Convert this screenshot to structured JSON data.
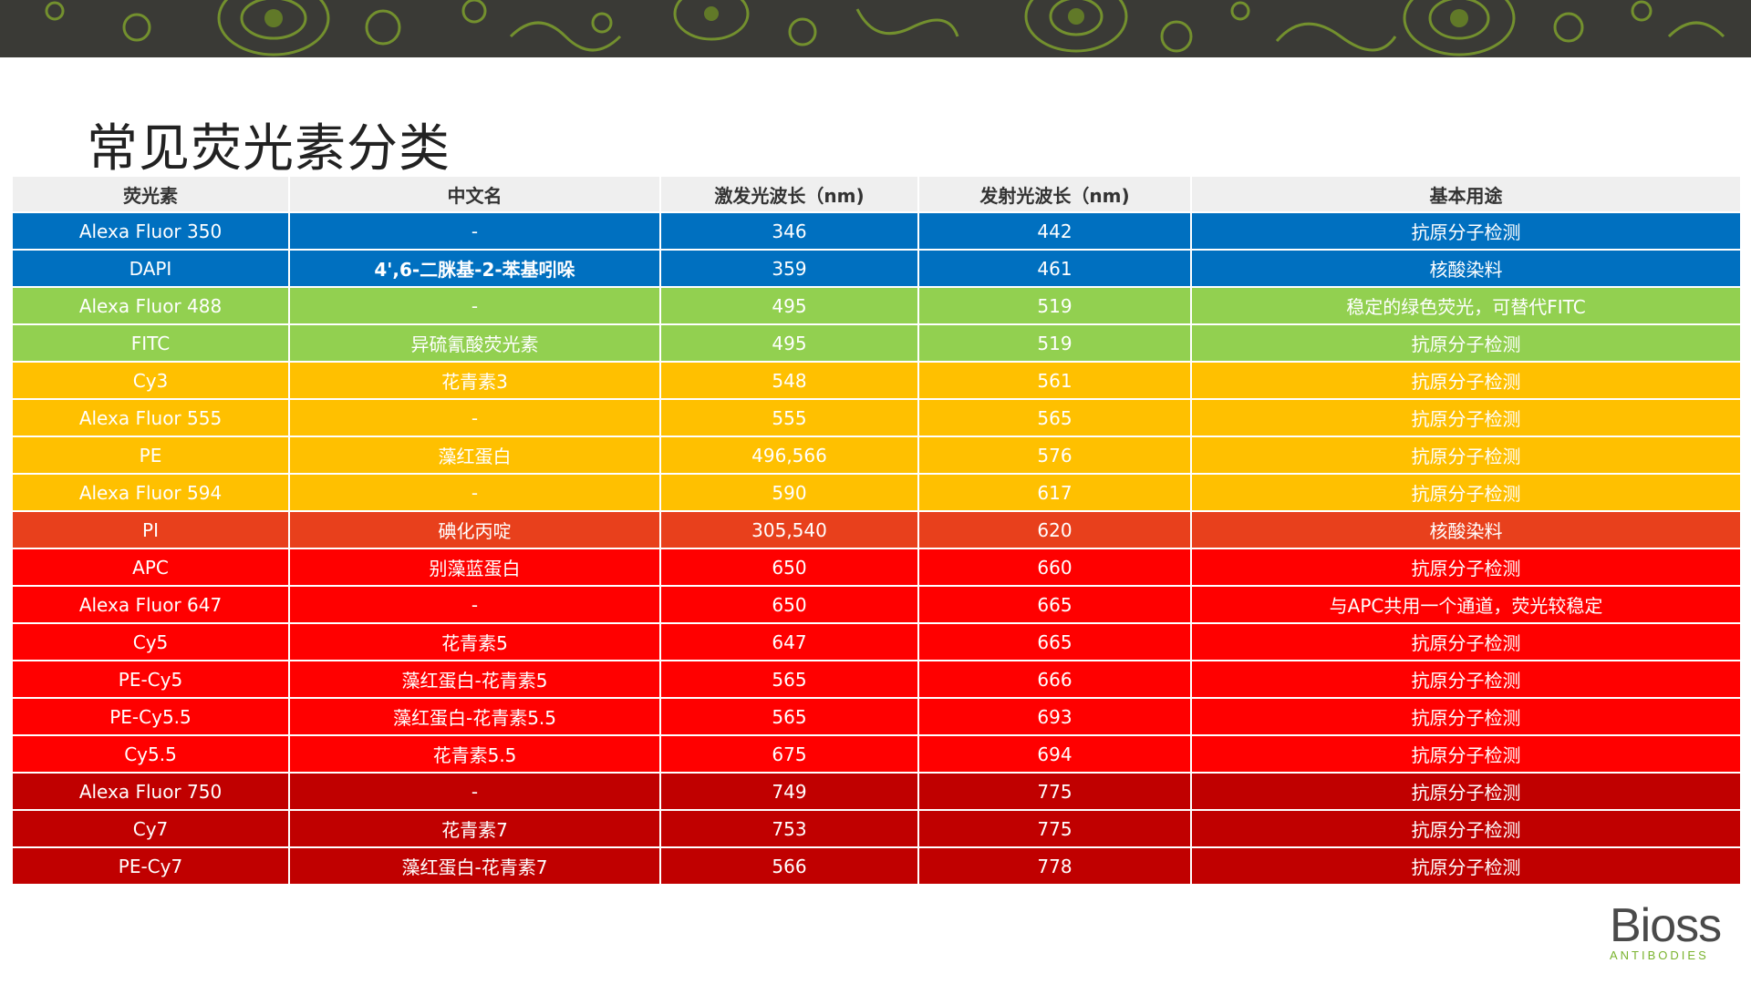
{
  "title": "常见荧光素分类",
  "colors": {
    "blue": "#0070c0",
    "green": "#92d050",
    "yellow": "#ffc000",
    "orange_red": "#e8401c",
    "red": "#ff0000",
    "dark_red": "#c00000",
    "header_bg": "#efefef",
    "banner": "#3a3a36",
    "banner_pattern": "#7a9a2e",
    "logo_green": "#7ab32e"
  },
  "table": {
    "headers": [
      "荧光素",
      "中文名",
      "激发光波长（nm)",
      "发射光波长（nm)",
      "基本用途"
    ],
    "rows": [
      {
        "color": "#0070c0",
        "cells": [
          "Alexa Fluor 350",
          "-",
          "346",
          "442",
          "抗原分子检测"
        ]
      },
      {
        "color": "#0070c0",
        "cells": [
          "DAPI",
          "4',6-二脒基-2-苯基吲哚",
          "359",
          "461",
          "核酸染料"
        ]
      },
      {
        "color": "#92d050",
        "cells": [
          "Alexa Fluor 488",
          "-",
          "495",
          "519",
          "稳定的绿色荧光，可替代FITC"
        ]
      },
      {
        "color": "#92d050",
        "cells": [
          "FITC",
          "异硫氰酸荧光素",
          "495",
          "519",
          "抗原分子检测"
        ]
      },
      {
        "color": "#ffc000",
        "cells": [
          "Cy3",
          "花青素3",
          "548",
          "561",
          "抗原分子检测"
        ]
      },
      {
        "color": "#ffc000",
        "cells": [
          "Alexa Fluor 555",
          "-",
          "555",
          "565",
          "抗原分子检测"
        ]
      },
      {
        "color": "#ffc000",
        "cells": [
          "PE",
          "藻红蛋白",
          "496,566",
          "576",
          "抗原分子检测"
        ]
      },
      {
        "color": "#ffc000",
        "cells": [
          "Alexa Fluor 594",
          "-",
          "590",
          "617",
          "抗原分子检测"
        ]
      },
      {
        "color": "#e8401c",
        "cells": [
          "PI",
          "碘化丙啶",
          "305,540",
          "620",
          "核酸染料"
        ]
      },
      {
        "color": "#ff0000",
        "cells": [
          "APC",
          "别藻蓝蛋白",
          "650",
          "660",
          "抗原分子检测"
        ]
      },
      {
        "color": "#ff0000",
        "cells": [
          "Alexa Fluor 647",
          "-",
          "650",
          "665",
          "与APC共用一个通道，荧光较稳定"
        ]
      },
      {
        "color": "#ff0000",
        "cells": [
          "Cy5",
          "花青素5",
          "647",
          "665",
          "抗原分子检测"
        ]
      },
      {
        "color": "#ff0000",
        "cells": [
          "PE-Cy5",
          "藻红蛋白-花青素5",
          "565",
          "666",
          "抗原分子检测"
        ]
      },
      {
        "color": "#ff0000",
        "cells": [
          "PE-Cy5.5",
          "藻红蛋白-花青素5.5",
          "565",
          "693",
          "抗原分子检测"
        ]
      },
      {
        "color": "#ff0000",
        "cells": [
          "Cy5.5",
          "花青素5.5",
          "675",
          "694",
          "抗原分子检测"
        ]
      },
      {
        "color": "#c00000",
        "cells": [
          "Alexa Fluor 750",
          "-",
          "749",
          "775",
          "抗原分子检测"
        ]
      },
      {
        "color": "#c00000",
        "cells": [
          "Cy7",
          "花青素7",
          "753",
          "775",
          "抗原分子检测"
        ]
      },
      {
        "color": "#c00000",
        "cells": [
          "PE-Cy7",
          "藻红蛋白-花青素7",
          "566",
          "778",
          "抗原分子检测"
        ]
      }
    ]
  },
  "logo": {
    "name": "Bioss",
    "tagline": "ANTIBODIES"
  }
}
